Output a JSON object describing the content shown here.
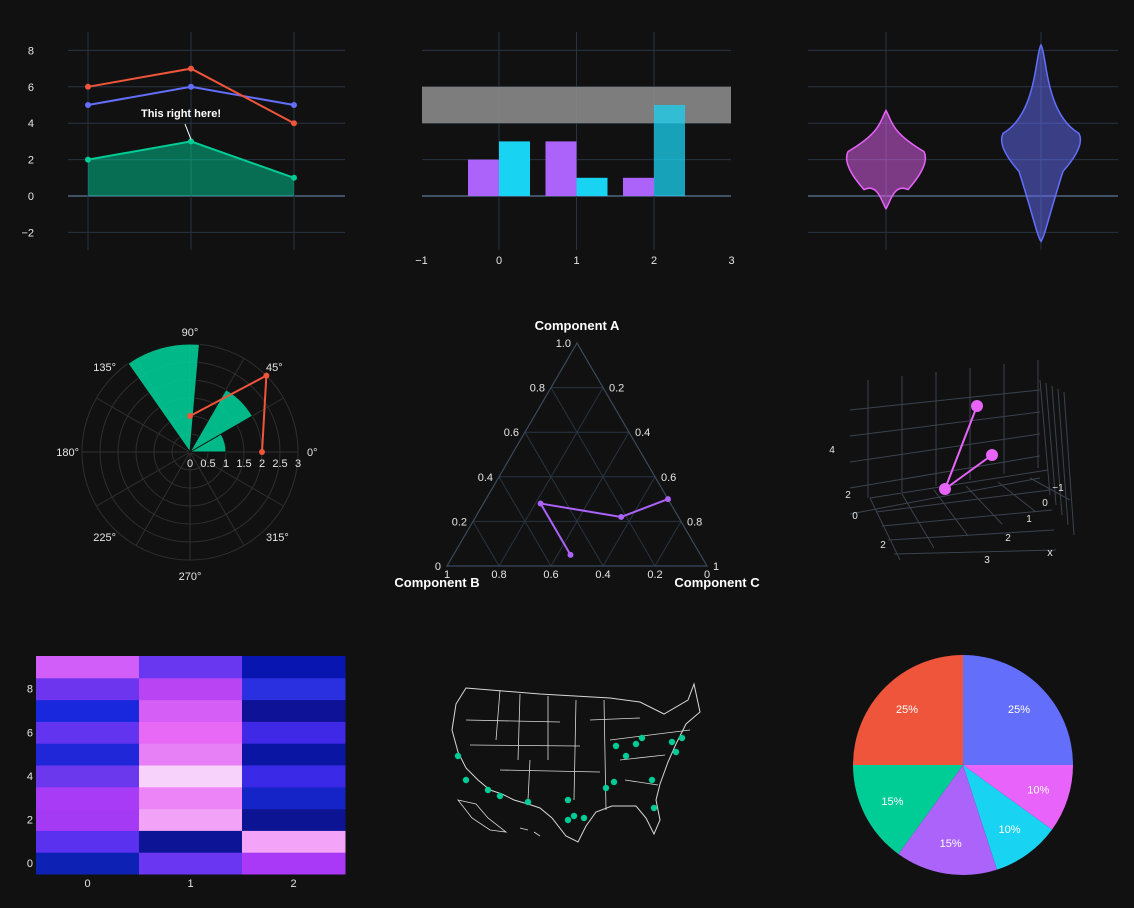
{
  "colors": {
    "background": "#111111",
    "grid": "#283442",
    "zeroline": "#506784",
    "blue": "#636efa",
    "red": "#EF553B",
    "green": "#00cc96",
    "purple": "#ab63fa",
    "cyan": "#19d3f3",
    "magenta": "#ff6692",
    "violet_pink": "#e763fa"
  },
  "chart_data": [
    {
      "id": "line-area",
      "type": "line",
      "x": [
        0,
        1,
        2
      ],
      "series": [
        {
          "values": [
            2,
            3,
            1
          ],
          "color": "#00cc96",
          "fill": true
        },
        {
          "values": [
            5,
            6,
            5
          ],
          "color": "#636efa"
        },
        {
          "values": [
            6,
            7,
            4
          ],
          "color": "#EF553B"
        }
      ],
      "ylim": [
        -3,
        9
      ],
      "yticks": [
        "−2",
        "0",
        "2",
        "4",
        "6",
        "8"
      ],
      "annotation": {
        "text": "This right here!",
        "x": 1,
        "y": 3
      },
      "grid": true
    },
    {
      "id": "bar-rect",
      "type": "bar",
      "x": [
        0,
        1,
        2
      ],
      "series": [
        {
          "values": [
            2,
            3,
            1
          ],
          "color": "#ab63fa"
        },
        {
          "values": [
            3,
            1,
            5
          ],
          "color": "#19d3f3"
        }
      ],
      "shape": {
        "y0": 4,
        "y1": 6,
        "color": "#8a8a8a"
      },
      "xlim": [
        -1,
        3
      ],
      "ylim": [
        -2,
        9
      ],
      "xticks": [
        "−1",
        "0",
        "1",
        "2",
        "3"
      ],
      "grid": true
    },
    {
      "id": "violin",
      "type": "violin",
      "series": [
        {
          "color": "#e763fa",
          "min": -0.7,
          "max": 4.7,
          "mode": 2
        },
        {
          "color": "#636efa",
          "min": -2.5,
          "max": 8.3,
          "mode": 3
        }
      ],
      "ylim": [
        -3,
        9
      ],
      "grid": true
    },
    {
      "id": "polar",
      "type": "barpolar",
      "angular_ticks": [
        "0°",
        "45°",
        "90°",
        "135°",
        "180°",
        "225°",
        "270°",
        "315°"
      ],
      "radial_ticks": [
        "0",
        "0.5",
        "1",
        "1.5",
        "2",
        "2.5",
        "3"
      ],
      "bars": [
        {
          "r": 1,
          "theta": 15,
          "width": 30,
          "color": "#00cc96"
        },
        {
          "r": 2,
          "theta": 45,
          "width": 30,
          "color": "#00cc96"
        },
        {
          "r": 3,
          "theta": 105,
          "width": 40,
          "color": "#00cc96"
        }
      ],
      "line": {
        "r": [
          2,
          3,
          1
        ],
        "theta": [
          0,
          45,
          90
        ],
        "color": "#EF553B"
      }
    },
    {
      "id": "ternary",
      "type": "ternary",
      "axis_titles": {
        "a": "Component A",
        "b": "Component B",
        "c": "Component C"
      },
      "a_ticks": [
        "0",
        "0.2",
        "0.4",
        "0.6",
        "0.8",
        "1.0"
      ],
      "b_ticks": [
        "1",
        "0.8",
        "0.6",
        "0.4",
        "0.2",
        "0"
      ],
      "c_ticks": [
        "0.2",
        "0.4",
        "0.6",
        "0.8",
        "1"
      ],
      "points": {
        "a": [
          0.28,
          0.05,
          0.22,
          0.3
        ],
        "b": [
          0.5,
          0.5,
          0.22,
          0.0
        ],
        "c": [
          0.22,
          0.45,
          0.56,
          0.7
        ]
      },
      "color": "#ab63fa"
    },
    {
      "id": "scatter3d",
      "type": "scatter3d",
      "tick_labels": [
        "4",
        "2",
        "0",
        "2",
        "−1",
        "0",
        "1",
        "2",
        "3"
      ],
      "axis_label": "x",
      "color": "#e763fa"
    },
    {
      "id": "heatmap",
      "type": "heatmap",
      "xticks": [
        "0",
        "1",
        "2"
      ],
      "yticks": [
        "0",
        "2",
        "4",
        "6",
        "8"
      ],
      "rows": [
        [
          "#0d22b5",
          "#6a36f2",
          "#a938f7"
        ],
        [
          "#5b31f0",
          "#0d1496",
          "#f3a3f8"
        ],
        [
          "#a53af5",
          "#f2a2f7",
          "#0d1494"
        ],
        [
          "#a83cf6",
          "#ec84f7",
          "#1524c7"
        ],
        [
          "#6b38ee",
          "#f7d2fa",
          "#3a2ae8"
        ],
        [
          "#1f27d9",
          "#e77ff6",
          "#0a15a3"
        ],
        [
          "#6334ef",
          "#e769f6",
          "#4029e6"
        ],
        [
          "#1a28dd",
          "#d55ef6",
          "#0d1296"
        ],
        [
          "#6e35ee",
          "#b944f4",
          "#2a30e0"
        ],
        [
          "#d15ef8",
          "#6a37f0",
          "#0815b1"
        ]
      ]
    },
    {
      "id": "map",
      "type": "scattergeo",
      "color": "#00cc96"
    },
    {
      "id": "pie",
      "type": "pie",
      "slices": [
        {
          "label": "25%",
          "value": 25,
          "color": "#636efa"
        },
        {
          "label": "10%",
          "value": 10,
          "color": "#e763fa"
        },
        {
          "label": "10%",
          "value": 10,
          "color": "#19d3f3"
        },
        {
          "label": "15%",
          "value": 15,
          "color": "#ab63fa"
        },
        {
          "label": "15%",
          "value": 15,
          "color": "#00cc96"
        },
        {
          "label": "25%",
          "value": 25,
          "color": "#EF553B"
        }
      ]
    }
  ]
}
